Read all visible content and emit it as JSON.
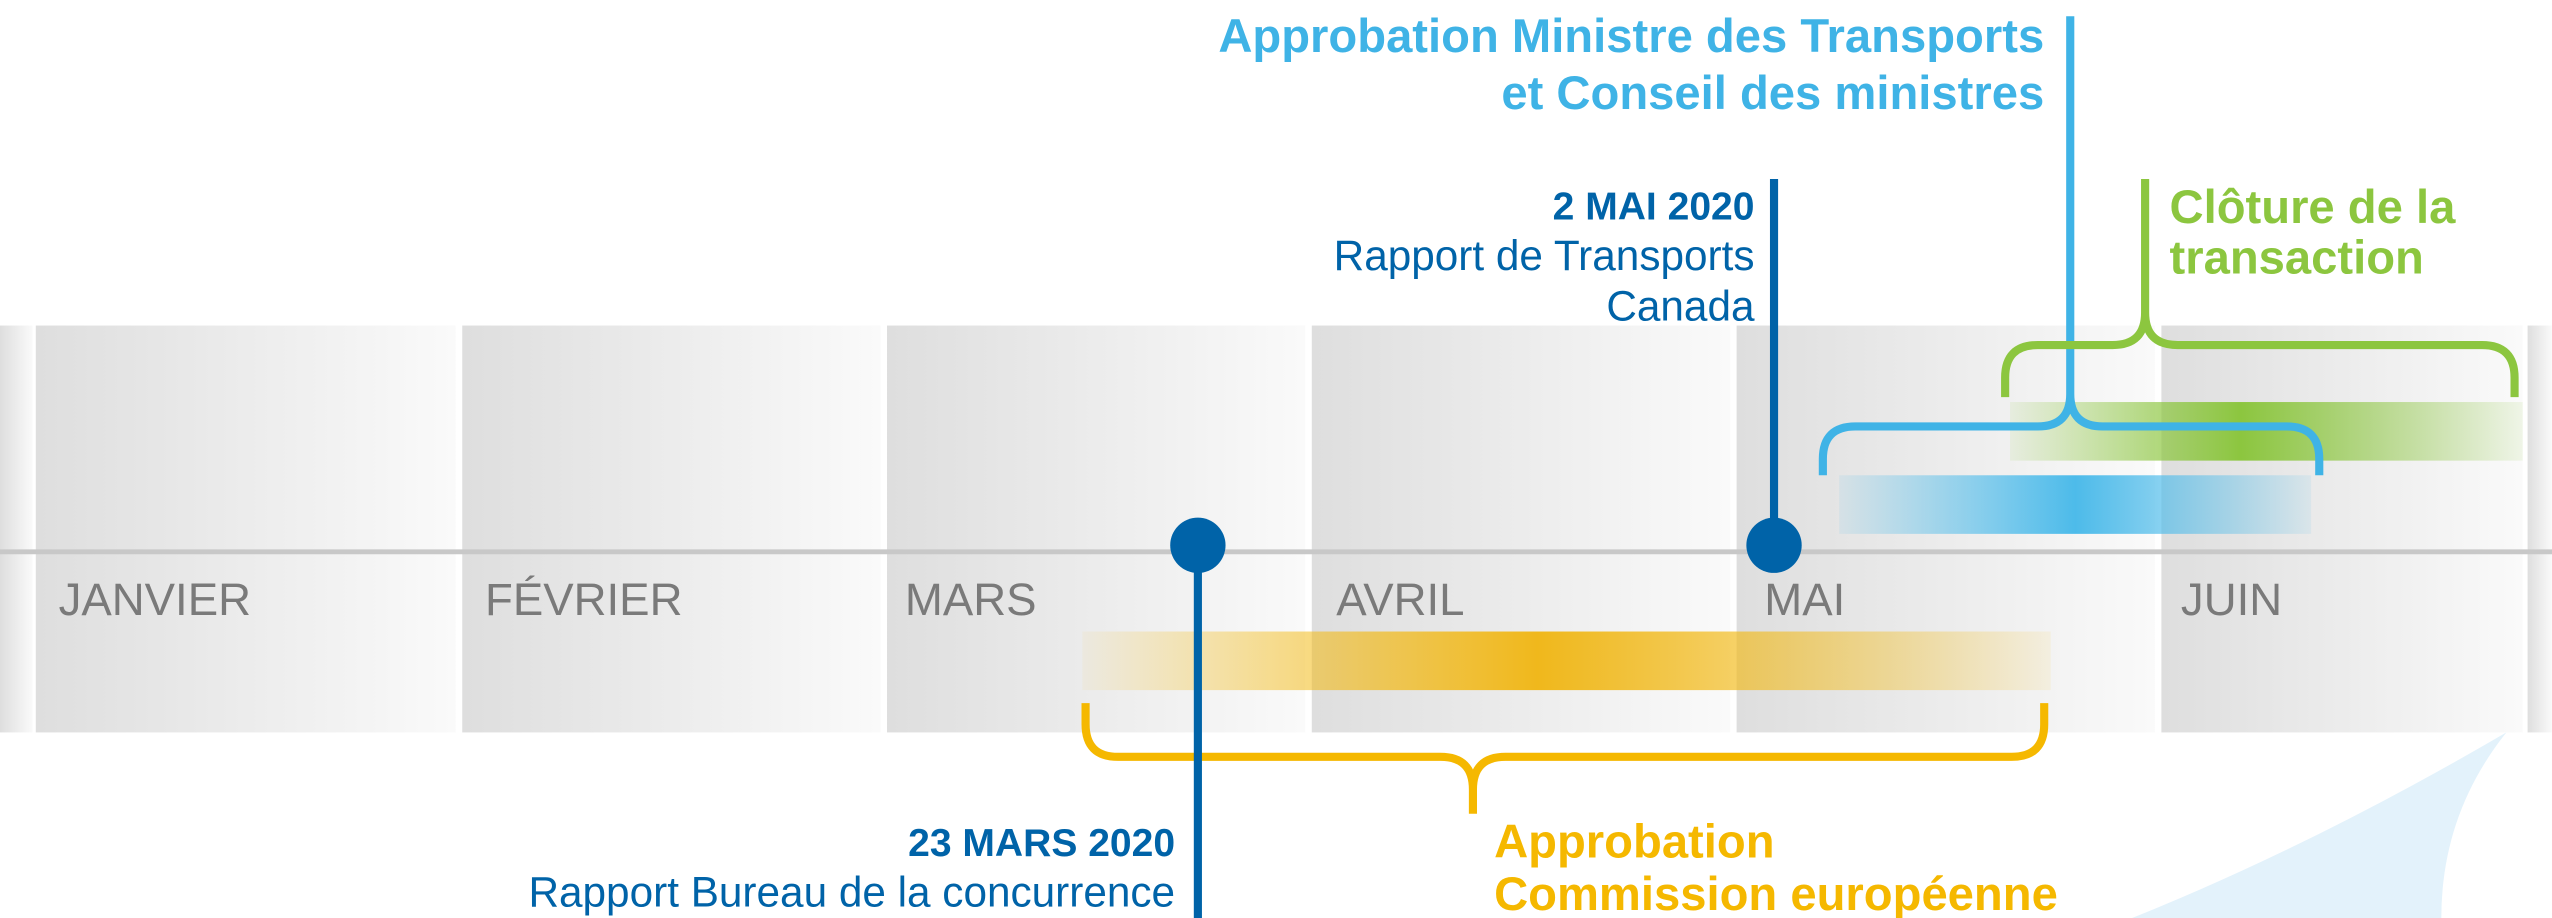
{
  "months": [
    "JANVIER",
    "FÉVRIER",
    "MARS",
    "AVRIL",
    "MAI",
    "JUIN"
  ],
  "events": [
    {
      "date": "23 MARS 2020",
      "lines": [
        "Rapport Bureau de la concurrence"
      ]
    },
    {
      "date": "2 MAI 2020",
      "lines": [
        "Rapport de Transports",
        "Canada"
      ]
    }
  ],
  "phases": [
    {
      "lines": [
        "Approbation Ministre des Transports",
        "et Conseil des ministres"
      ]
    },
    {
      "lines": [
        "Clôture de la",
        "transaction"
      ]
    },
    {
      "lines": [
        "Approbation",
        "Commission européenne"
      ]
    }
  ]
}
